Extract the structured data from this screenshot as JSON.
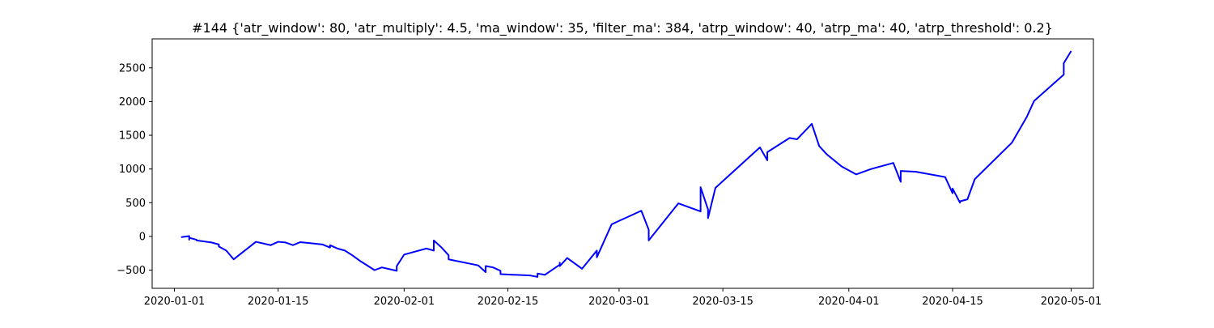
{
  "chart_data": {
    "type": "line",
    "title": "#144 {'atr_window': 80, 'atr_multiply': 4.5, 'ma_window': 35, 'filter_ma': 384, 'atrp_window': 40, 'atrp_ma': 40, 'atrp_threshold': 0.2}",
    "xlabel": "",
    "ylabel": "",
    "x_type": "date",
    "xlim": [
      "2019-12-29",
      "2020-05-04"
    ],
    "ylim": [
      -770,
      2930
    ],
    "grid": false,
    "legend": "none",
    "x_ticks": [
      "2020-01-01",
      "2020-01-15",
      "2020-02-01",
      "2020-02-15",
      "2020-03-01",
      "2020-03-15",
      "2020-04-01",
      "2020-04-15",
      "2020-05-01"
    ],
    "y_ticks": [
      -500,
      0,
      500,
      1000,
      1500,
      2000,
      2500
    ],
    "series": [
      {
        "color": "#0000ff",
        "points": [
          [
            "2020-01-02",
            0
          ],
          [
            "2020-01-02",
            -10
          ],
          [
            "2020-01-03",
            5
          ],
          [
            "2020-01-03",
            -50
          ],
          [
            "2020-01-03",
            -20
          ],
          [
            "2020-01-04",
            -50
          ],
          [
            "2020-01-04",
            -60
          ],
          [
            "2020-01-06",
            -90
          ],
          [
            "2020-01-07",
            -120
          ],
          [
            "2020-01-07",
            -150
          ],
          [
            "2020-01-08",
            -210
          ],
          [
            "2020-01-09",
            -340
          ],
          [
            "2020-01-12",
            -80
          ],
          [
            "2020-01-14",
            -130
          ],
          [
            "2020-01-15",
            -80
          ],
          [
            "2020-01-16",
            -90
          ],
          [
            "2020-01-17",
            -130
          ],
          [
            "2020-01-18",
            -85
          ],
          [
            "2020-01-21",
            -120
          ],
          [
            "2020-01-22",
            -165
          ],
          [
            "2020-01-22",
            -130
          ],
          [
            "2020-01-23",
            -180
          ],
          [
            "2020-01-24",
            -210
          ],
          [
            "2020-01-25",
            -280
          ],
          [
            "2020-01-26",
            -360
          ],
          [
            "2020-01-28",
            -500
          ],
          [
            "2020-01-29",
            -460
          ],
          [
            "2020-01-31",
            -510
          ],
          [
            "2020-01-31",
            -440
          ],
          [
            "2020-02-01",
            -270
          ],
          [
            "2020-02-04",
            -180
          ],
          [
            "2020-02-05",
            -210
          ],
          [
            "2020-02-05",
            -60
          ],
          [
            "2020-02-06",
            -160
          ],
          [
            "2020-02-07",
            -280
          ],
          [
            "2020-02-07",
            -340
          ],
          [
            "2020-02-11",
            -430
          ],
          [
            "2020-02-12",
            -530
          ],
          [
            "2020-02-12",
            -440
          ],
          [
            "2020-02-13",
            -460
          ],
          [
            "2020-02-14",
            -510
          ],
          [
            "2020-02-14",
            -560
          ],
          [
            "2020-02-18",
            -580
          ],
          [
            "2020-02-19",
            -600
          ],
          [
            "2020-02-19",
            -550
          ],
          [
            "2020-02-20",
            -570
          ],
          [
            "2020-02-22",
            -420
          ],
          [
            "2020-02-22",
            -390
          ],
          [
            "2020-02-22",
            -440
          ],
          [
            "2020-02-23",
            -320
          ],
          [
            "2020-02-25",
            -480
          ],
          [
            "2020-02-27",
            -210
          ],
          [
            "2020-02-27",
            -310
          ],
          [
            "2020-02-29",
            180
          ],
          [
            "2020-03-04",
            380
          ],
          [
            "2020-03-05",
            100
          ],
          [
            "2020-03-05",
            -60
          ],
          [
            "2020-03-09",
            490
          ],
          [
            "2020-03-12",
            370
          ],
          [
            "2020-03-12",
            730
          ],
          [
            "2020-03-13",
            400
          ],
          [
            "2020-03-13",
            270
          ],
          [
            "2020-03-14",
            720
          ],
          [
            "2020-03-20",
            1320
          ],
          [
            "2020-03-21",
            1130
          ],
          [
            "2020-03-21",
            1250
          ],
          [
            "2020-03-24",
            1460
          ],
          [
            "2020-03-25",
            1440
          ],
          [
            "2020-03-27",
            1670
          ],
          [
            "2020-03-28",
            1340
          ],
          [
            "2020-03-29",
            1220
          ],
          [
            "2020-03-31",
            1040
          ],
          [
            "2020-04-02",
            920
          ],
          [
            "2020-04-04",
            1000
          ],
          [
            "2020-04-07",
            1090
          ],
          [
            "2020-04-08",
            810
          ],
          [
            "2020-04-08",
            970
          ],
          [
            "2020-04-10",
            960
          ],
          [
            "2020-04-14",
            880
          ],
          [
            "2020-04-15",
            640
          ],
          [
            "2020-04-15",
            710
          ],
          [
            "2020-04-16",
            500
          ],
          [
            "2020-04-16",
            520
          ],
          [
            "2020-04-17",
            550
          ],
          [
            "2020-04-18",
            850
          ],
          [
            "2020-04-23",
            1390
          ],
          [
            "2020-04-25",
            1770
          ],
          [
            "2020-04-26",
            2010
          ],
          [
            "2020-04-30",
            2400
          ],
          [
            "2020-04-30",
            2570
          ],
          [
            "2020-05-01",
            2750
          ]
        ]
      }
    ]
  }
}
